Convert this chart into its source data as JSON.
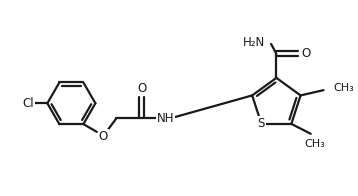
{
  "background_color": "#ffffff",
  "line_color": "#1a1a1a",
  "line_width": 1.6,
  "font_size": 8.5,
  "fig_width": 3.58,
  "fig_height": 1.96,
  "dpi": 100,
  "xlim": [
    0,
    10
  ],
  "ylim": [
    0,
    5.5
  ]
}
